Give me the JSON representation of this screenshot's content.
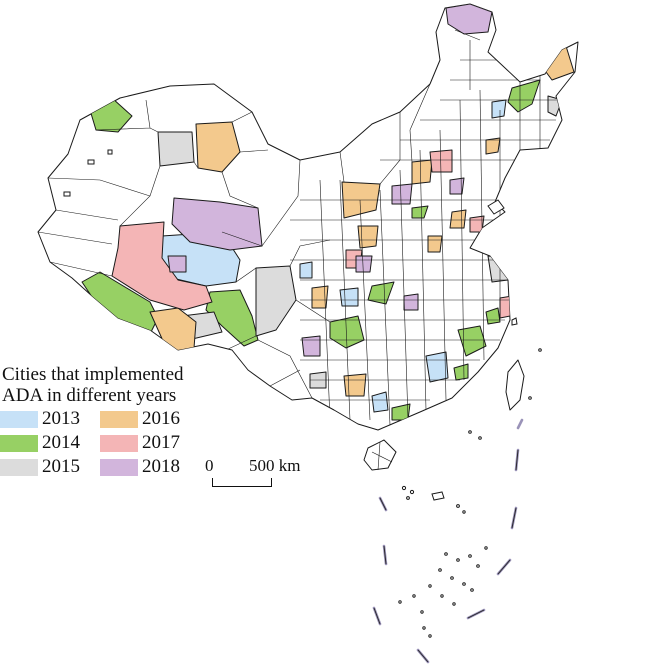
{
  "legend": {
    "title": "Cities that implemented\nADA in different years",
    "items": [
      {
        "year": "2013",
        "color": "#c6e1f7"
      },
      {
        "year": "2016",
        "color": "#f3c98d"
      },
      {
        "year": "2014",
        "color": "#97d064"
      },
      {
        "year": "2017",
        "color": "#f4b5b6"
      },
      {
        "year": "2015",
        "color": "#dcdcdc"
      },
      {
        "year": "2018",
        "color": "#d2b5dc"
      }
    ]
  },
  "scale_bar": {
    "zero": "0",
    "distance": "500 km"
  },
  "colors": {
    "none": "#ffffff",
    "boundary": "#1a1a1a",
    "dashed_border": "#9a93b8"
  }
}
